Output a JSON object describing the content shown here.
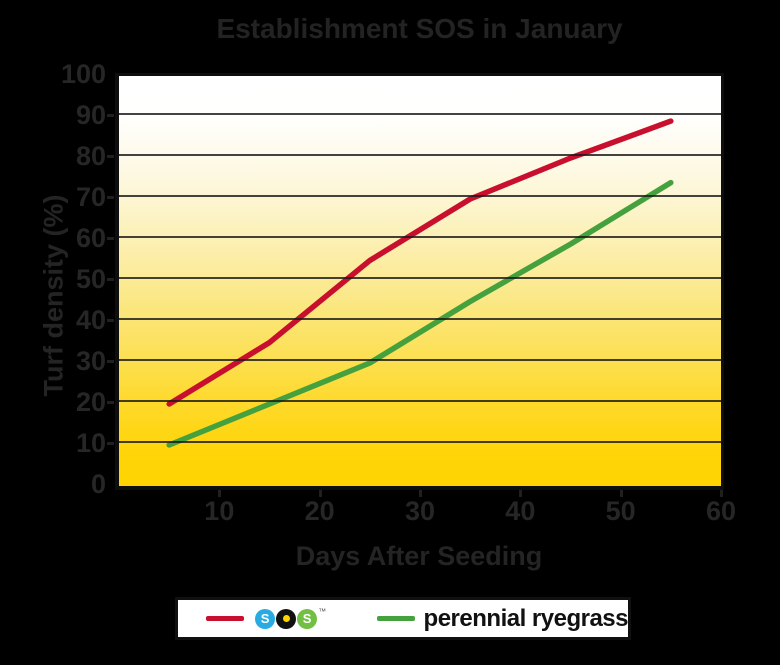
{
  "chart_data": {
    "type": "line",
    "title": "Establishment SOS in January",
    "xlabel": "Days After Seeding",
    "ylabel": "Turf density (%)",
    "xlim": [
      0,
      60
    ],
    "ylim": [
      0,
      100
    ],
    "x_ticks": [
      10,
      20,
      30,
      40,
      50,
      60
    ],
    "y_ticks": [
      0,
      10,
      20,
      30,
      40,
      50,
      60,
      70,
      80,
      90,
      100
    ],
    "grid": "horizontal",
    "legend_position": "bottom",
    "plot_background": "white-to-yellow vertical gradient",
    "x": [
      5,
      15,
      25,
      35,
      45,
      55
    ],
    "series": [
      {
        "key": "sos",
        "name": "SOS",
        "color": "#c8102e",
        "values": [
          20,
          35,
          55,
          70,
          80,
          89
        ]
      },
      {
        "key": "perennial-ryegrass",
        "name": "perennial ryegrass",
        "color": "#45a13e",
        "values": [
          10,
          20,
          30,
          45,
          59,
          74
        ]
      }
    ]
  },
  "legend": {
    "sos_letters": [
      "S",
      "O",
      "S"
    ],
    "trademark": "™",
    "ryegrass_label": "perennial ryegrass"
  },
  "colors": {
    "page_background": "#000000",
    "text": "#242424",
    "sos_line": "#c8102e",
    "ryegrass_line": "#45a13e",
    "sos_logo_blue": "#29abe2",
    "sos_logo_black": "#111111",
    "sos_logo_green": "#72bf44",
    "sos_logo_yellow_dot": "#ffd400",
    "plot_gradient_top": "#ffffff",
    "plot_gradient_bottom": "#ffd400"
  }
}
